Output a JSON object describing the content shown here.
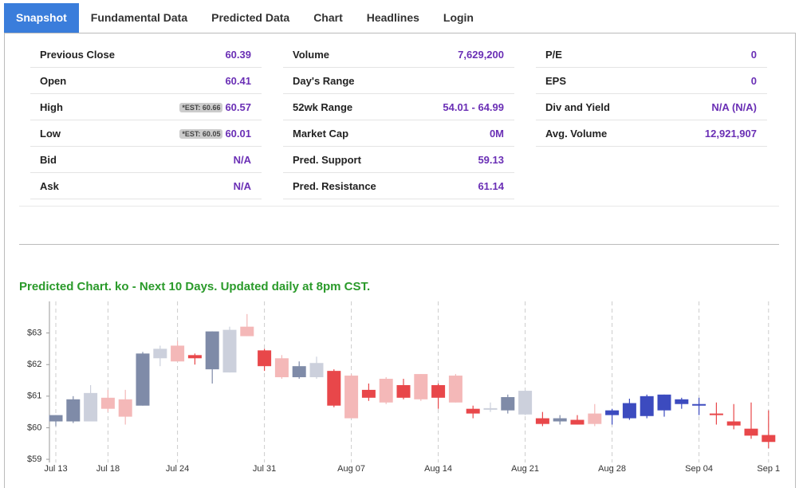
{
  "tabs": [
    "Snapshot",
    "Fundamental Data",
    "Predicted Data",
    "Chart",
    "Headlines",
    "Login"
  ],
  "snapshot": {
    "columns": [
      [
        {
          "label": "Previous Close",
          "value": "60.39"
        },
        {
          "label": "Open",
          "value": "60.41"
        },
        {
          "label": "High",
          "value": "60.57",
          "est": "*EST: 60.66"
        },
        {
          "label": "Low",
          "value": "60.01",
          "est": "*EST: 60.05"
        },
        {
          "label": "Bid",
          "value": "N/A"
        },
        {
          "label": "Ask",
          "value": "N/A"
        }
      ],
      [
        {
          "label": "Volume",
          "value": "7,629,200"
        },
        {
          "label": "Day's Range",
          "value": null
        },
        {
          "label": "52wk Range",
          "value": "54.01 - 64.99"
        },
        {
          "label": "Market Cap",
          "value": "0M"
        },
        {
          "label": "Pred. Support",
          "value": "59.13"
        },
        {
          "label": "Pred. Resistance",
          "value": "61.14"
        }
      ],
      [
        {
          "label": "P/E",
          "value": "0"
        },
        {
          "label": "EPS",
          "value": "0"
        },
        {
          "label": "Div and Yield",
          "value": "N/A (N/A)"
        },
        {
          "label": "Avg. Volume",
          "value": "12,921,907"
        }
      ]
    ]
  },
  "chart_data": {
    "type": "candlestick",
    "title": "Predicted Chart. ko - Next 10 Days. Updated daily at 8pm CST.",
    "categories": [
      "Jul 13",
      null,
      null,
      "Jul 18",
      null,
      null,
      null,
      "Jul 24",
      null,
      null,
      null,
      null,
      "Jul 31",
      null,
      null,
      null,
      null,
      "Aug 07",
      null,
      null,
      null,
      null,
      "Aug 14",
      null,
      null,
      null,
      null,
      "Aug 21",
      null,
      null,
      null,
      null,
      "Aug 28",
      null,
      null,
      null,
      null,
      "Sep 04",
      null,
      null,
      null,
      "Sep 1"
    ],
    "open": [
      60.2,
      60.2,
      60.2,
      60.95,
      60.9,
      60.7,
      62.2,
      62.6,
      62.3,
      61.85,
      61.75,
      63.2,
      62.45,
      62.2,
      61.6,
      61.6,
      61.8,
      61.65,
      61.2,
      61.55,
      61.35,
      61.7,
      61.35,
      61.65,
      60.6,
      60.58,
      60.55,
      60.42,
      60.3,
      60.2,
      60.25,
      60.45,
      60.4,
      60.3,
      60.37,
      60.55,
      60.75,
      60.72,
      60.45,
      60.2,
      59.97,
      59.77
    ],
    "high": [
      60.4,
      61.0,
      61.35,
      61.2,
      61.2,
      62.4,
      62.6,
      62.75,
      62.35,
      63.05,
      63.2,
      63.6,
      62.5,
      62.3,
      62.1,
      62.25,
      61.85,
      61.7,
      61.4,
      61.6,
      61.55,
      61.7,
      61.4,
      61.7,
      60.7,
      60.8,
      61.05,
      61.2,
      60.5,
      60.4,
      60.4,
      60.75,
      60.6,
      60.92,
      61.05,
      61.05,
      60.95,
      60.95,
      60.8,
      60.75,
      60.8,
      60.55
    ],
    "low": [
      60.05,
      60.15,
      60.2,
      60.5,
      60.1,
      60.7,
      61.95,
      62.1,
      62.0,
      61.4,
      61.75,
      62.9,
      61.8,
      61.55,
      61.55,
      61.55,
      60.65,
      60.3,
      60.85,
      60.75,
      60.9,
      60.85,
      60.6,
      60.8,
      60.3,
      60.5,
      60.45,
      60.4,
      60.05,
      60.1,
      60.1,
      60.05,
      60.1,
      60.25,
      60.3,
      60.35,
      60.6,
      60.4,
      60.1,
      59.95,
      59.65,
      59.35
    ],
    "close": [
      60.4,
      60.9,
      61.1,
      60.6,
      60.35,
      62.35,
      62.5,
      62.1,
      62.2,
      63.05,
      63.1,
      62.9,
      61.95,
      61.6,
      61.95,
      62.05,
      60.7,
      60.3,
      60.95,
      60.8,
      60.95,
      60.9,
      60.95,
      60.8,
      60.45,
      60.62,
      60.97,
      61.17,
      60.12,
      60.3,
      60.1,
      60.12,
      60.55,
      60.78,
      61.0,
      61.05,
      60.9,
      60.75,
      60.4,
      60.07,
      59.75,
      59.55
    ],
    "colors": [
      "#7f8ba8",
      "#7f8ba8",
      "#ccd0dc",
      "#f4b8b8",
      "#f4b8b8",
      "#7f8ba8",
      "#ccd0dc",
      "#f4b8b8",
      "#e8474a",
      "#7f8ba8",
      "#ccd0dc",
      "#f4b8b8",
      "#e8474a",
      "#f4b8b8",
      "#7f8ba8",
      "#ccd0dc",
      "#e8474a",
      "#f4b8b8",
      "#e8474a",
      "#f4b8b8",
      "#e8474a",
      "#f4b8b8",
      "#e8474a",
      "#f4b8b8",
      "#e8474a",
      "#ccd0dc",
      "#7f8ba8",
      "#ccd0dc",
      "#e8474a",
      "#7f8ba8",
      "#e8474a",
      "#f4b8b8",
      "#3c4bbf",
      "#3c4bbf",
      "#3c4bbf",
      "#3c4bbf",
      "#3c4bbf",
      "#3c4bbf",
      "#e8474a",
      "#e8474a",
      "#e8474a",
      "#e8474a"
    ],
    "ylim": [
      58.9,
      64.0
    ],
    "yticks": [
      {
        "value": 59,
        "label": "$59"
      },
      {
        "value": 60,
        "label": "$60"
      },
      {
        "value": 61,
        "label": "$61"
      },
      {
        "value": 62,
        "label": "$62"
      },
      {
        "value": 63,
        "label": "$63"
      }
    ]
  }
}
